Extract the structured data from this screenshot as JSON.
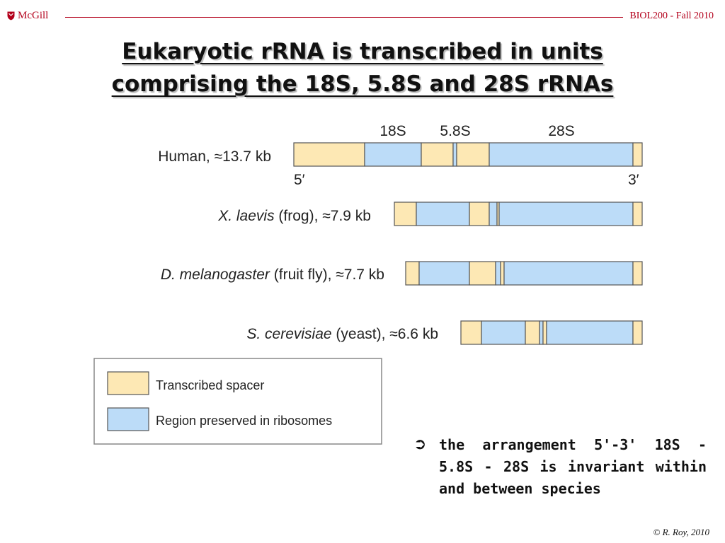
{
  "header": {
    "logo_text": "McGill",
    "course": "BIOL200 - Fall 2010"
  },
  "title_lines": [
    "Eukaryotic rRNA is transcribed in units",
    "comprising the 18S, 5.8S and 28S rRNAs"
  ],
  "diagram": {
    "gene_labels": [
      "18S",
      "5.8S",
      "28S"
    ],
    "end_labels": [
      "5′",
      "3′"
    ],
    "colors": {
      "spacer": "#fde8b4",
      "preserved": "#bcdcf8",
      "border": "#555555"
    },
    "species": [
      {
        "name_italic": "",
        "name_plain": "Human, ≈13.7 kb"
      },
      {
        "name_italic": "X. laevis",
        "name_plain": " (frog), ≈7.9 kb"
      },
      {
        "name_italic": "D. melanogaster",
        "name_plain": " (fruit fly), ≈7.7 kb"
      },
      {
        "name_italic": "S. cerevisiae",
        "name_plain": " (yeast), ≈6.6 kb"
      }
    ],
    "legend": [
      {
        "label": "Transcribed spacer",
        "type": "spacer"
      },
      {
        "label": "Region preserved in ribosomes",
        "type": "preserved"
      }
    ]
  },
  "bullet": {
    "text": "the arrangement 5'-3' 18S - 5.8S - 28S is invariant within and between species"
  },
  "footer": {
    "copyright": "© R. Roy, 2010"
  }
}
